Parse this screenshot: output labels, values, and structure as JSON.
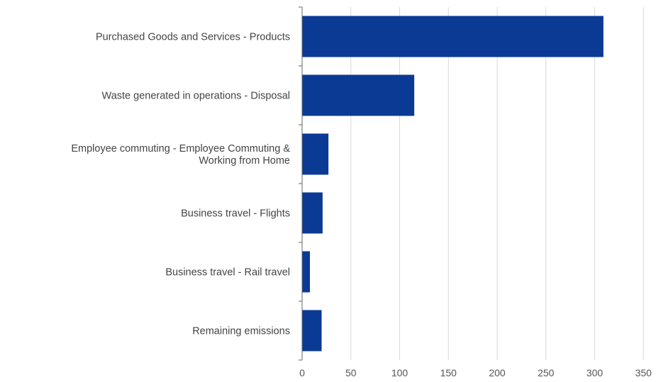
{
  "chart_data": {
    "type": "bar",
    "orientation": "horizontal",
    "title": "",
    "xlabel": "",
    "ylabel": "",
    "categories": [
      "Purchased Goods and Services - Products",
      "Waste generated in operations - Disposal",
      "Employee commuting - Employee Commuting & Working from Home",
      "Business travel - Flights",
      "Business travel - Rail travel",
      "Remaining emissions"
    ],
    "category_label_lines": [
      [
        "Purchased Goods and Services - Products"
      ],
      [
        "Waste generated in operations - Disposal"
      ],
      [
        "Employee commuting - Employee Commuting &",
        "Working from Home"
      ],
      [
        "Business travel - Flights"
      ],
      [
        "Business travel - Rail travel"
      ],
      [
        "Remaining emissions"
      ]
    ],
    "values": [
      309,
      115,
      27,
      21,
      8,
      20
    ],
    "xlim": [
      0,
      350
    ],
    "xticks": [
      "0",
      "50",
      "100",
      "150",
      "200",
      "250",
      "300",
      "350"
    ],
    "grid": "vertical",
    "legend": "none",
    "bar_color": "#0a3a94",
    "grid_color": "#d9d9d9",
    "axis_color": "#666666"
  }
}
